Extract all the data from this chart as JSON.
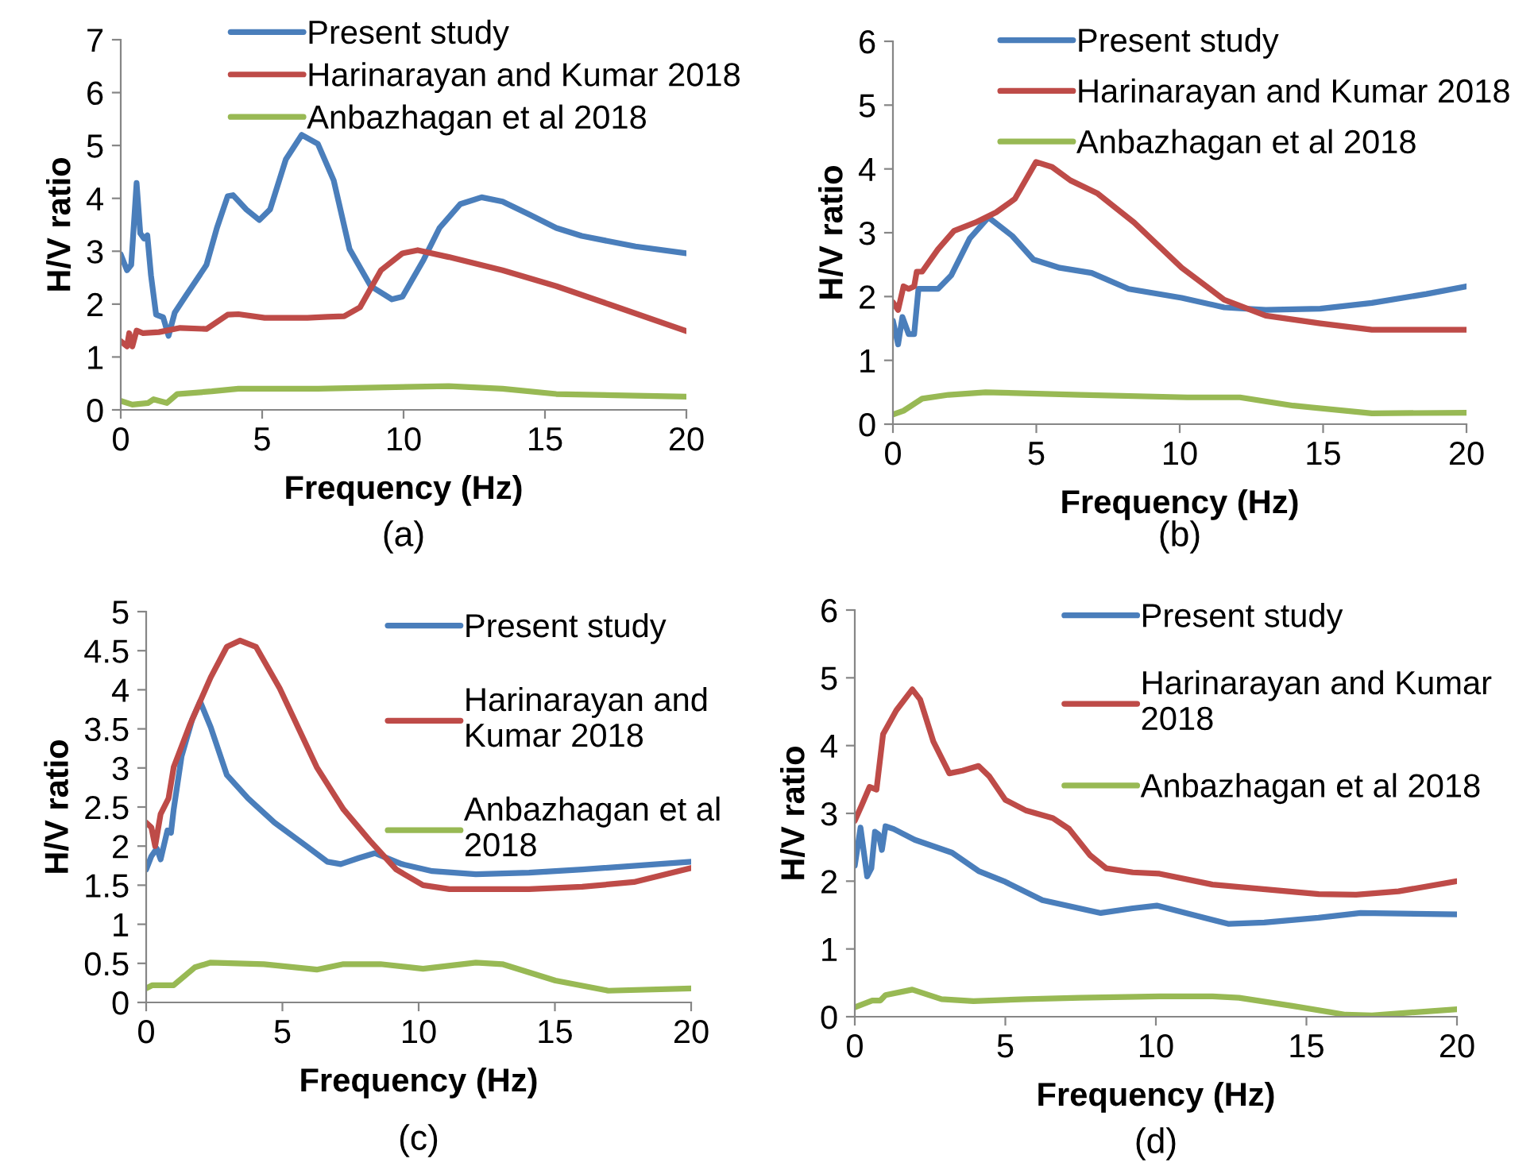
{
  "chart_data": [
    {
      "type": "line",
      "xlabel": "Frequency (Hz)",
      "ylabel": "H/V ratio",
      "annotations": [
        "(a)"
      ],
      "xlim": [
        0,
        20
      ],
      "xticks": [
        0,
        5,
        10,
        15,
        20
      ],
      "ylim": [
        0,
        7
      ],
      "yticks": [
        0,
        1,
        2,
        3,
        4,
        5,
        6,
        7
      ],
      "grid": false,
      "legend": "top right",
      "marker": "none",
      "line_style": "solid",
      "series": [
        {
          "name": "Present study",
          "color": "#4a7ebb",
          "x": [
            0,
            0.22,
            0.37,
            0.56,
            0.69,
            0.82,
            0.94,
            1.07,
            1.25,
            1.5,
            1.69,
            1.91,
            2.28,
            3.03,
            3.4,
            3.78,
            3.97,
            4.44,
            4.9,
            5.28,
            5.84,
            6.4,
            6.97,
            7.53,
            8.09,
            8.84,
            9.59,
            9.96,
            10.71,
            11.27,
            12.0,
            12.76,
            13.5,
            14.46,
            15.4,
            16.3,
            18.2,
            20
          ],
          "values": [
            2.94,
            2.64,
            2.74,
            4.29,
            3.34,
            3.24,
            3.3,
            2.54,
            1.8,
            1.75,
            1.4,
            1.84,
            2.14,
            2.74,
            3.44,
            4.04,
            4.06,
            3.79,
            3.59,
            3.79,
            4.74,
            5.2,
            5.03,
            4.34,
            3.04,
            2.34,
            2.09,
            2.14,
            2.84,
            3.44,
            3.89,
            4.02,
            3.94,
            3.69,
            3.44,
            3.29,
            3.09,
            2.96
          ]
        },
        {
          "name": "Harinarayan and Kumar 2018",
          "color": "#be4b48",
          "x": [
            0,
            0.22,
            0.3,
            0.41,
            0.56,
            0.79,
            1.35,
            2.1,
            3.03,
            3.78,
            4.16,
            5.09,
            6.6,
            7.3,
            7.9,
            8.46,
            9.2,
            9.96,
            10.5,
            11.6,
            13.5,
            15.4,
            17.3,
            20
          ],
          "values": [
            1.3,
            1.2,
            1.45,
            1.2,
            1.5,
            1.45,
            1.47,
            1.55,
            1.53,
            1.8,
            1.81,
            1.74,
            1.74,
            1.76,
            1.77,
            1.94,
            2.64,
            2.96,
            3.02,
            2.89,
            2.64,
            2.34,
            1.99,
            1.49
          ]
        },
        {
          "name": "Anbazhagan et al 2018",
          "color": "#98b954",
          "x": [
            0,
            0.41,
            0.97,
            1.16,
            1.63,
            2.0,
            3.22,
            4.16,
            6.97,
            11.6,
            13.5,
            15.4,
            20
          ],
          "values": [
            0.17,
            0.1,
            0.13,
            0.2,
            0.13,
            0.3,
            0.35,
            0.4,
            0.4,
            0.45,
            0.4,
            0.3,
            0.25
          ]
        }
      ]
    },
    {
      "type": "line",
      "xlabel": "Frequency (Hz)",
      "ylabel": "H/V ratio",
      "annotations": [
        "(b)"
      ],
      "xlim": [
        0,
        20
      ],
      "xticks": [
        0,
        5,
        10,
        15,
        20
      ],
      "ylim": [
        0,
        6
      ],
      "yticks": [
        0,
        1,
        2,
        3,
        4,
        5,
        6
      ],
      "grid": false,
      "legend": "top right",
      "marker": "none",
      "line_style": "solid",
      "series": [
        {
          "name": "Present study",
          "color": "#4a7ebb",
          "x": [
            0,
            0.18,
            0.33,
            0.55,
            0.74,
            0.89,
            1.57,
            2.03,
            2.68,
            3.33,
            4.16,
            4.9,
            5.82,
            6.93,
            8.22,
            10.07,
            11.55,
            13.0,
            14.9,
            16.7,
            18.6,
            20
          ],
          "values": [
            1.62,
            1.25,
            1.68,
            1.41,
            1.41,
            2.12,
            2.12,
            2.33,
            2.91,
            3.24,
            2.95,
            2.58,
            2.45,
            2.37,
            2.12,
            1.98,
            1.83,
            1.79,
            1.81,
            1.9,
            2.04,
            2.16
          ]
        },
        {
          "name": "Harinarayan and Kumar 2018",
          "color": "#be4b48",
          "x": [
            0,
            0.18,
            0.37,
            0.55,
            0.74,
            0.83,
            1.02,
            1.57,
            2.13,
            2.87,
            3.6,
            4.25,
            4.99,
            5.55,
            6.19,
            7.12,
            8.41,
            10.07,
            11.55,
            13.0,
            14.9,
            16.7,
            20
          ],
          "values": [
            1.91,
            1.79,
            2.16,
            2.12,
            2.16,
            2.39,
            2.39,
            2.74,
            3.03,
            3.16,
            3.32,
            3.53,
            4.11,
            4.03,
            3.82,
            3.62,
            3.16,
            2.45,
            1.95,
            1.7,
            1.58,
            1.48,
            1.48
          ]
        },
        {
          "name": "Anbazhagan et al 2018",
          "color": "#98b954",
          "x": [
            0,
            0.37,
            1.02,
            1.94,
            3.23,
            6.56,
            10.26,
            12.1,
            13.96,
            16.7,
            20
          ],
          "values": [
            0.15,
            0.21,
            0.4,
            0.46,
            0.5,
            0.46,
            0.42,
            0.42,
            0.29,
            0.17,
            0.18
          ]
        }
      ]
    },
    {
      "type": "line",
      "xlabel": "Frequency (Hz)",
      "ylabel": "H/V ratio",
      "annotations": [
        "(c)"
      ],
      "xlim": [
        0,
        20
      ],
      "xticks": [
        0,
        5,
        10,
        15,
        20
      ],
      "ylim": [
        0,
        5
      ],
      "yticks": [
        0,
        0.5,
        1,
        1.5,
        2,
        2.5,
        3,
        3.5,
        4,
        4.5,
        5
      ],
      "grid": false,
      "legend": "top right",
      "marker": "none",
      "line_style": "solid",
      "series": [
        {
          "name": "Present study",
          "color": "#4a7ebb",
          "x": [
            0,
            0.19,
            0.39,
            0.53,
            0.78,
            0.91,
            1.01,
            1.3,
            1.69,
            1.98,
            2.37,
            2.96,
            3.74,
            4.71,
            5.88,
            6.65,
            7.14,
            7.82,
            8.4,
            9.38,
            10.5,
            12.1,
            14.05,
            16.0,
            20
          ],
          "values": [
            1.7,
            1.87,
            1.97,
            1.83,
            2.2,
            2.17,
            2.47,
            3.15,
            3.62,
            3.85,
            3.52,
            2.91,
            2.61,
            2.3,
            2.0,
            1.8,
            1.77,
            1.85,
            1.91,
            1.77,
            1.68,
            1.64,
            1.66,
            1.7,
            1.8
          ]
        },
        {
          "name": "Harinarayan and\nKumar 2018",
          "color": "#be4b48",
          "x": [
            0,
            0.19,
            0.33,
            0.53,
            0.82,
            1.01,
            1.6,
            2.37,
            2.96,
            3.44,
            4.03,
            4.9,
            6.26,
            7.24,
            8.21,
            9.18,
            10.16,
            11.13,
            14.05,
            16.0,
            17.9,
            20
          ],
          "values": [
            2.3,
            2.24,
            2.0,
            2.41,
            2.61,
            3.01,
            3.55,
            4.16,
            4.55,
            4.63,
            4.55,
            4.02,
            3.01,
            2.47,
            2.07,
            1.7,
            1.5,
            1.45,
            1.45,
            1.48,
            1.54,
            1.72
          ]
        },
        {
          "name": "Anbazhagan et al\n2018",
          "color": "#98b954",
          "x": [
            0,
            0.23,
            1.01,
            1.79,
            2.37,
            4.32,
            6.26,
            7.24,
            8.6,
            10.16,
            12.1,
            13.07,
            15.02,
            16.96,
            20
          ],
          "values": [
            0.18,
            0.22,
            0.22,
            0.45,
            0.51,
            0.49,
            0.42,
            0.49,
            0.49,
            0.43,
            0.51,
            0.49,
            0.28,
            0.15,
            0.18
          ]
        }
      ]
    },
    {
      "type": "line",
      "xlabel": "Frequency (Hz)",
      "ylabel": "H/V ratio",
      "annotations": [
        "(d)"
      ],
      "xlim": [
        0,
        20
      ],
      "xticks": [
        0,
        5,
        10,
        15,
        20
      ],
      "ylim": [
        0,
        6
      ],
      "yticks": [
        0,
        1,
        2,
        3,
        4,
        5,
        6
      ],
      "grid": false,
      "legend": "top right",
      "marker": "none",
      "line_style": "solid",
      "series": [
        {
          "name": "Present study",
          "color": "#4a7ebb",
          "x": [
            0,
            0.19,
            0.41,
            0.55,
            0.67,
            0.79,
            0.9,
            1.02,
            1.29,
            1.99,
            3.23,
            4.11,
            5.0,
            6.23,
            8.17,
            9.23,
            10.03,
            11.0,
            12.4,
            13.6,
            15.4,
            16.8,
            20
          ],
          "values": [
            2.23,
            2.79,
            2.07,
            2.19,
            2.73,
            2.69,
            2.46,
            2.81,
            2.77,
            2.61,
            2.42,
            2.15,
            1.99,
            1.72,
            1.53,
            1.6,
            1.64,
            1.53,
            1.37,
            1.39,
            1.46,
            1.53,
            1.51
          ]
        },
        {
          "name": "Harinarayan and Kumar\n2018",
          "color": "#be4b48",
          "x": [
            0,
            0.23,
            0.49,
            0.72,
            0.94,
            1.38,
            1.91,
            2.17,
            2.61,
            3.14,
            3.58,
            4.11,
            4.46,
            5.0,
            5.7,
            6.58,
            7.12,
            7.82,
            8.35,
            9.23,
            10.12,
            11.88,
            13.64,
            15.41,
            16.65,
            18.06,
            20
          ],
          "values": [
            2.89,
            3.12,
            3.39,
            3.35,
            4.17,
            4.52,
            4.83,
            4.68,
            4.06,
            3.59,
            3.63,
            3.7,
            3.55,
            3.2,
            3.04,
            2.93,
            2.77,
            2.38,
            2.19,
            2.13,
            2.11,
            1.95,
            1.88,
            1.81,
            1.8,
            1.85,
            2.0
          ]
        },
        {
          "name": "Anbazhagan et al 2018",
          "color": "#98b954",
          "x": [
            0,
            0.58,
            0.85,
            1.02,
            1.91,
            2.88,
            3.94,
            5.7,
            7.47,
            10.12,
            11.88,
            12.76,
            14.53,
            16.3,
            17.18,
            20
          ],
          "values": [
            0.14,
            0.24,
            0.24,
            0.32,
            0.4,
            0.26,
            0.23,
            0.26,
            0.28,
            0.3,
            0.3,
            0.28,
            0.16,
            0.03,
            0.02,
            0.11
          ]
        }
      ]
    }
  ]
}
